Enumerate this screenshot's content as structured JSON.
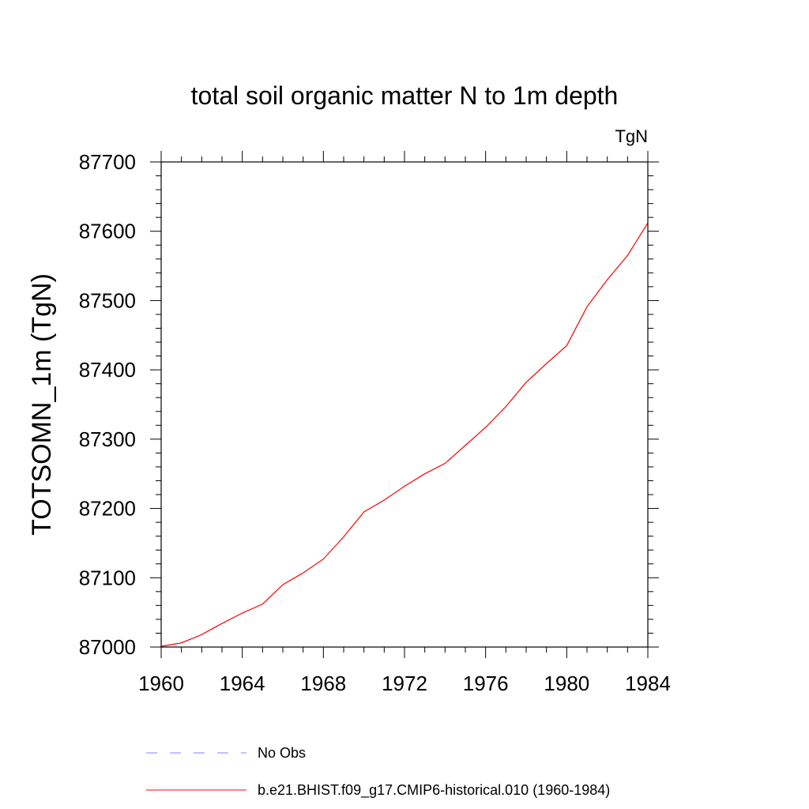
{
  "chart_data": {
    "type": "line",
    "title": "total soil organic matter N to 1m depth",
    "units_label": "TgN",
    "xlabel": "",
    "ylabel": "TOTSOMN_1m  (TgN)",
    "xlim": [
      1960,
      1984
    ],
    "ylim": [
      87000,
      87700
    ],
    "x_ticks": [
      1960,
      1964,
      1968,
      1972,
      1976,
      1980,
      1984
    ],
    "y_ticks": [
      87000,
      87100,
      87200,
      87300,
      87400,
      87500,
      87600,
      87700
    ],
    "grid": false,
    "legend_position": "bottom",
    "series": [
      {
        "name": "No Obs",
        "color": "#8080ff",
        "style": "dashed",
        "x": [],
        "values": []
      },
      {
        "name": "b.e21.BHIST.f09_g17.CMIP6-historical.010 (1960-1984)",
        "color": "#ff0000",
        "style": "solid",
        "x": [
          1960,
          1961,
          1962,
          1963,
          1964,
          1965,
          1966,
          1967,
          1968,
          1969,
          1970,
          1971,
          1972,
          1973,
          1974,
          1975,
          1976,
          1977,
          1978,
          1979,
          1980,
          1981,
          1982,
          1983,
          1984
        ],
        "values": [
          87001,
          87006,
          87018,
          87034,
          87049,
          87062,
          87090,
          87107,
          87127,
          87159,
          87195,
          87212,
          87232,
          87250,
          87265,
          87291,
          87317,
          87347,
          87382,
          87409,
          87435,
          87491,
          87530,
          87565,
          87612
        ]
      }
    ]
  }
}
